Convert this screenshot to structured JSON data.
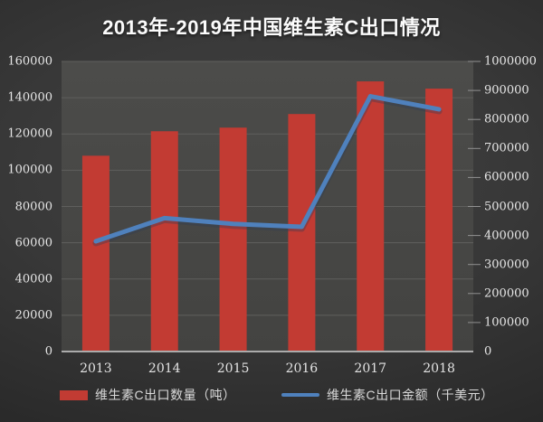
{
  "title": "2013年-2019年中国维生素C出口情况",
  "chart_data": {
    "type": "combo",
    "categories": [
      "2013",
      "2014",
      "2015",
      "2016",
      "2017",
      "2018"
    ],
    "series": [
      {
        "name": "维生素C出口数量（吨）",
        "type": "bar",
        "axis": "left",
        "color": "#c23b33",
        "values": [
          108000,
          121500,
          123500,
          131000,
          149000,
          145000
        ]
      },
      {
        "name": "维生素C出口金额（千美元）",
        "type": "line",
        "axis": "right",
        "color": "#4f81bd",
        "values": [
          380000,
          460000,
          440000,
          430000,
          880000,
          835000
        ]
      }
    ],
    "left_axis": {
      "min": 0,
      "max": 160000,
      "step": 20000,
      "tick_labels": [
        "0",
        "20000",
        "40000",
        "60000",
        "80000",
        "100000",
        "120000",
        "140000",
        "160000"
      ]
    },
    "right_axis": {
      "min": 0,
      "max": 1000000,
      "step": 100000,
      "tick_labels": [
        "0",
        "100000",
        "200000",
        "300000",
        "400000",
        "500000",
        "600000",
        "700000",
        "800000",
        "900000",
        "1000000"
      ]
    },
    "grid": "horizontal major gridlines (primary axis)",
    "legend_position": "bottom"
  },
  "colors": {
    "background": "#333333",
    "plot_background": "#4a4a48",
    "gridline": "#5f5f5d",
    "axis_line": "#ababab",
    "tick_text": "#e6e6e6",
    "title_text": "#fbfbfb",
    "legend_text": "#d9d9d9"
  }
}
